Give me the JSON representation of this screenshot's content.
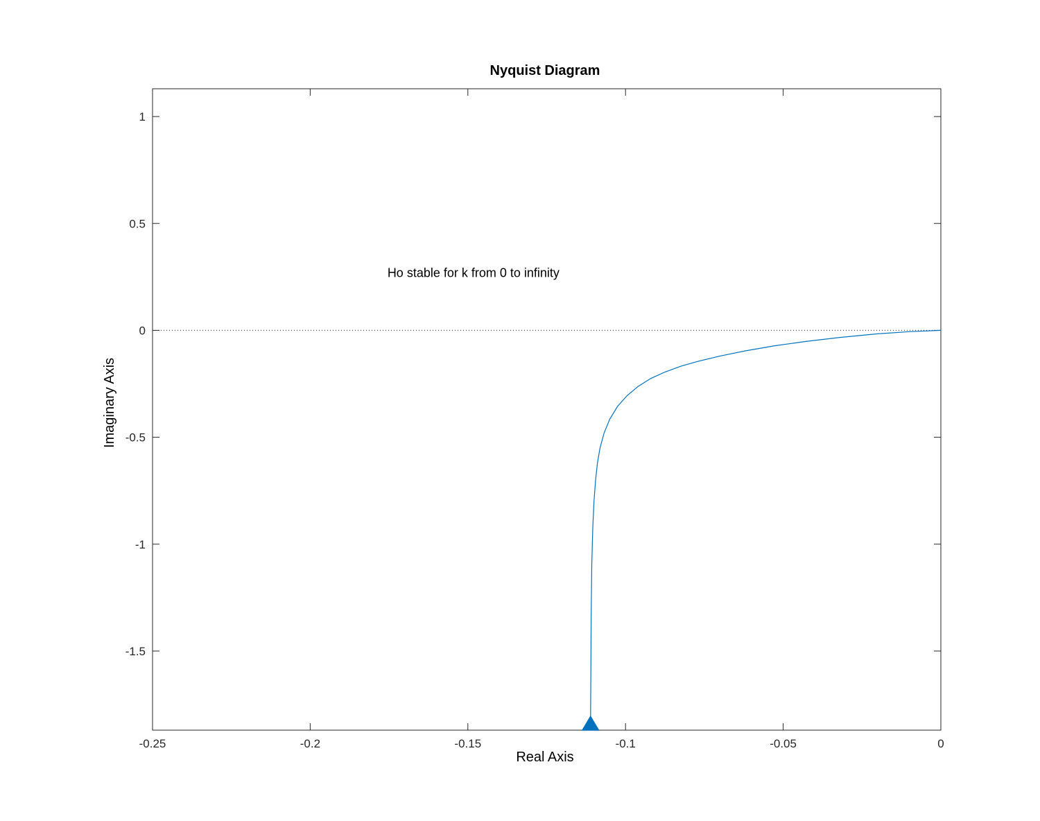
{
  "chart_data": {
    "type": "line",
    "title": "Nyquist Diagram",
    "xlabel": "Real Axis",
    "ylabel": "Imaginary Axis",
    "xlim": [
      -0.25,
      0
    ],
    "ylim": [
      -1.87,
      1.13
    ],
    "xticks": [
      -0.25,
      -0.2,
      -0.15,
      -0.1,
      -0.05,
      0
    ],
    "xtick_labels": [
      "-0.25",
      "-0.2",
      "-0.15",
      "-0.1",
      "-0.05",
      "0"
    ],
    "yticks": [
      -1.5,
      -1,
      -0.5,
      0,
      0.5,
      1
    ],
    "ytick_labels": [
      "-1.5",
      "-1",
      "-0.5",
      "0",
      "0.5",
      "1"
    ],
    "grid": false,
    "zero_line": "dotted horizontal at Imaginary = 0",
    "annotation": {
      "text": "Ho stable for k from 0 to infinity",
      "x": -0.1755,
      "y": 0.25
    },
    "series": [
      {
        "color": "#0072BD",
        "x": [
          -0.1111,
          -0.111,
          -0.1109,
          -0.1107,
          -0.1104,
          -0.11,
          -0.1095,
          -0.1089,
          -0.1081,
          -0.1068,
          -0.105,
          -0.1025,
          -0.0995,
          -0.096,
          -0.092,
          -0.0875,
          -0.0825,
          -0.077,
          -0.07,
          -0.062,
          -0.053,
          -0.043,
          -0.032,
          -0.02,
          -0.01,
          0.0
        ],
        "y": [
          -1.84,
          -1.6,
          -1.35,
          -1.1,
          -0.93,
          -0.8,
          -0.7,
          -0.62,
          -0.55,
          -0.48,
          -0.415,
          -0.355,
          -0.305,
          -0.262,
          -0.225,
          -0.195,
          -0.168,
          -0.145,
          -0.12,
          -0.096,
          -0.073,
          -0.052,
          -0.033,
          -0.016,
          -0.006,
          0.0
        ]
      }
    ],
    "arrow_marker": {
      "x": -0.1111,
      "y": -1.84,
      "direction": "up",
      "color": "#0072BD"
    }
  }
}
